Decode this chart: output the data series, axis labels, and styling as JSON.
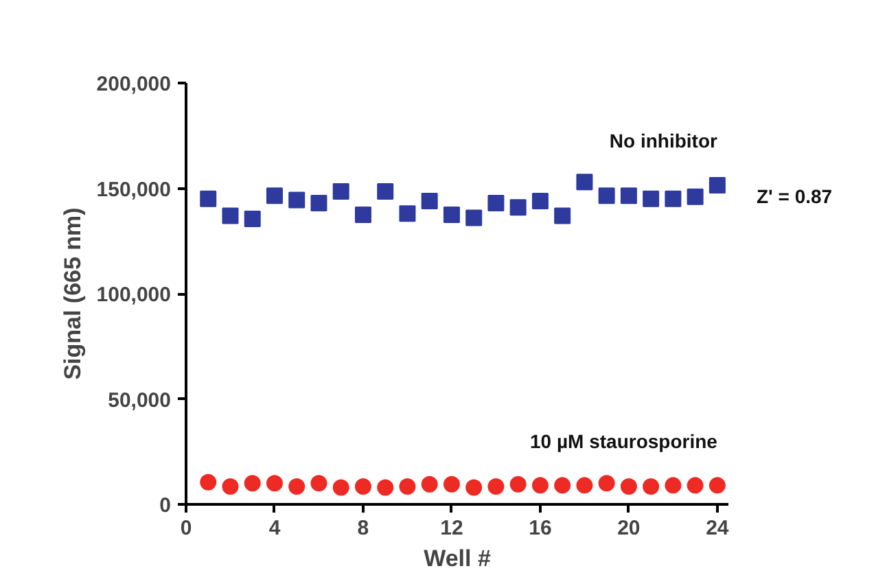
{
  "chart_data": {
    "type": "scatter",
    "xlabel": "Well #",
    "ylabel": "Signal (665 nm)",
    "x": [
      1,
      2,
      3,
      4,
      5,
      6,
      7,
      8,
      9,
      10,
      11,
      12,
      13,
      14,
      15,
      16,
      17,
      18,
      19,
      20,
      21,
      22,
      23,
      24
    ],
    "xlim": [
      0,
      24.5
    ],
    "xticks": [
      0,
      4,
      8,
      12,
      16,
      20,
      24
    ],
    "ylim": [
      0,
      200000
    ],
    "yticks": [
      {
        "value": 0,
        "label": "0"
      },
      {
        "value": 50000,
        "label": "50,000"
      },
      {
        "value": 100000,
        "label": "100,000"
      },
      {
        "value": 150000,
        "label": "150,000"
      },
      {
        "value": 200000,
        "label": "200,000"
      }
    ],
    "grid": false,
    "legend": false,
    "annotations": [
      "Z' = 0.87"
    ],
    "series": [
      {
        "name": "No inhibitor",
        "color": "#2e3a9e",
        "marker": "square",
        "values": [
          145000,
          137000,
          135500,
          146500,
          144500,
          143000,
          148500,
          137500,
          148500,
          138000,
          144000,
          137500,
          136000,
          143000,
          141000,
          144000,
          137000,
          153000,
          146500,
          146500,
          145000,
          145000,
          146000,
          151500
        ]
      },
      {
        "name": "10 µM staurosporine",
        "color": "#ee2a24",
        "marker": "circle",
        "values": [
          10500,
          8500,
          10000,
          10000,
          8500,
          10000,
          8000,
          8500,
          8000,
          8500,
          9500,
          9500,
          8000,
          8500,
          9500,
          9000,
          9000,
          9000,
          10000,
          8500,
          8500,
          9000,
          9000,
          9000
        ]
      }
    ]
  }
}
